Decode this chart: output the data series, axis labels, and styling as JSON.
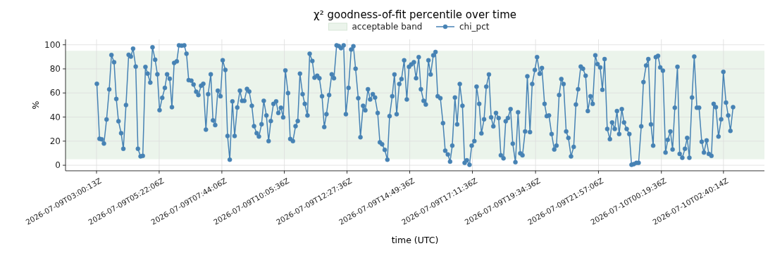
{
  "chart_data": {
    "type": "line",
    "title": "χ² goodness-of-fit percentile over time",
    "xlabel": "time (UTC)",
    "ylabel": "%",
    "xlim": [
      "2026-07-09T01:50",
      "2026-07-10T04:13"
    ],
    "ylim": [
      -4.6,
      104.5
    ],
    "xticks": [
      {
        "value": "2026-07-09T03:00:13",
        "label": "2026-07-09T03:00:13Z"
      },
      {
        "value": "2026-07-09T05:22:06",
        "label": "2026-07-09T05:22:06Z"
      },
      {
        "value": "2026-07-09T07:44:06",
        "label": "2026-07-09T07:44:06Z"
      },
      {
        "value": "2026-07-09T10:05:36",
        "label": "2026-07-09T10:05:36Z"
      },
      {
        "value": "2026-07-09T12:27:36",
        "label": "2026-07-09T12:27:36Z"
      },
      {
        "value": "2026-07-09T14:49:36",
        "label": "2026-07-09T14:49:36Z"
      },
      {
        "value": "2026-07-09T17:11:36",
        "label": "2026-07-09T17:11:36Z"
      },
      {
        "value": "2026-07-09T19:34:36",
        "label": "2026-07-09T19:34:36Z"
      },
      {
        "value": "2026-07-09T21:57:06",
        "label": "2026-07-09T21:57:06Z"
      },
      {
        "value": "2026-07-10T00:19:36",
        "label": "2026-07-10T00:19:36Z"
      },
      {
        "value": "2026-07-10T02:40:14",
        "label": "2026-07-10T02:40:14Z"
      }
    ],
    "yticks": [
      0,
      20,
      40,
      60,
      80,
      100
    ],
    "grid": true,
    "legend": "top",
    "marker": "circle",
    "line_style": "solid",
    "bands": [
      {
        "axis": "y",
        "from": 5,
        "to": 95,
        "label": "acceptable band",
        "color": "#ebf4eb"
      }
    ],
    "series": [
      {
        "name": "chi_pct",
        "color": "#4682b4",
        "x": [
          "2026-07-09T03:01",
          "2026-07-09T03:07",
          "2026-07-09T03:12",
          "2026-07-09T03:17",
          "2026-07-09T03:23",
          "2026-07-09T03:29",
          "2026-07-09T03:34",
          "2026-07-09T03:40",
          "2026-07-09T03:45",
          "2026-07-09T03:50",
          "2026-07-09T03:56",
          "2026-07-09T04:01",
          "2026-07-09T04:07",
          "2026-07-09T04:13",
          "2026-07-09T04:18",
          "2026-07-09T04:23",
          "2026-07-09T04:29",
          "2026-07-09T04:34",
          "2026-07-09T04:40",
          "2026-07-09T04:45",
          "2026-07-09T04:51",
          "2026-07-09T04:56",
          "2026-07-09T05:02",
          "2026-07-09T05:07",
          "2026-07-09T05:13",
          "2026-07-09T05:18",
          "2026-07-09T05:23",
          "2026-07-09T05:29",
          "2026-07-09T05:35",
          "2026-07-09T05:40",
          "2026-07-09T05:46",
          "2026-07-09T05:51",
          "2026-07-09T05:56",
          "2026-07-09T06:02",
          "2026-07-09T06:07",
          "2026-07-09T06:13",
          "2026-07-09T06:19",
          "2026-07-09T06:24",
          "2026-07-09T06:29",
          "2026-07-09T06:35",
          "2026-07-09T06:40",
          "2026-07-09T06:46",
          "2026-07-09T06:51",
          "2026-07-09T06:57",
          "2026-07-09T07:02",
          "2026-07-09T07:08",
          "2026-07-09T07:13",
          "2026-07-09T07:19",
          "2026-07-09T07:24",
          "2026-07-09T07:29",
          "2026-07-09T07:35",
          "2026-07-09T07:41",
          "2026-07-09T07:46",
          "2026-07-09T07:52",
          "2026-07-09T07:57",
          "2026-07-09T08:02",
          "2026-07-09T08:08",
          "2026-07-09T08:13",
          "2026-07-09T08:19",
          "2026-07-09T08:25",
          "2026-07-09T08:30",
          "2026-07-09T08:35",
          "2026-07-09T08:41",
          "2026-07-09T08:46",
          "2026-07-09T08:52",
          "2026-07-09T08:57",
          "2026-07-09T09:03",
          "2026-07-09T09:08",
          "2026-07-09T09:14",
          "2026-07-09T09:19",
          "2026-07-09T09:25",
          "2026-07-09T09:30",
          "2026-07-09T09:35",
          "2026-07-09T09:41",
          "2026-07-09T09:47",
          "2026-07-09T09:52",
          "2026-07-09T09:58",
          "2026-07-09T10:03",
          "2026-07-09T10:08",
          "2026-07-09T10:14",
          "2026-07-09T10:19",
          "2026-07-09T10:25",
          "2026-07-09T10:31",
          "2026-07-09T10:36",
          "2026-07-09T10:41",
          "2026-07-09T10:47",
          "2026-07-09T10:52",
          "2026-07-09T10:58",
          "2026-07-09T11:03",
          "2026-07-09T11:09",
          "2026-07-09T11:14",
          "2026-07-09T11:20",
          "2026-07-09T11:25",
          "2026-07-09T11:31",
          "2026-07-09T11:36",
          "2026-07-09T11:41",
          "2026-07-09T11:47",
          "2026-07-09T11:53",
          "2026-07-09T11:58",
          "2026-07-09T12:04",
          "2026-07-09T12:09",
          "2026-07-09T12:14",
          "2026-07-09T12:20",
          "2026-07-09T12:25",
          "2026-07-09T12:31",
          "2026-07-09T12:37",
          "2026-07-09T12:42",
          "2026-07-09T12:47",
          "2026-07-09T12:53",
          "2026-07-09T12:58",
          "2026-07-09T13:04",
          "2026-07-09T13:09",
          "2026-07-09T13:15",
          "2026-07-09T13:20",
          "2026-07-09T13:26",
          "2026-07-09T13:31",
          "2026-07-09T13:37",
          "2026-07-09T13:42",
          "2026-07-09T13:47",
          "2026-07-09T13:53",
          "2026-07-09T13:59",
          "2026-07-09T14:04",
          "2026-07-09T14:10",
          "2026-07-09T14:15",
          "2026-07-09T14:20",
          "2026-07-09T14:26",
          "2026-07-09T14:31",
          "2026-07-09T14:37",
          "2026-07-09T14:43",
          "2026-07-09T14:48",
          "2026-07-09T14:53",
          "2026-07-09T14:59",
          "2026-07-09T15:04",
          "2026-07-09T15:10",
          "2026-07-09T15:15",
          "2026-07-09T15:21",
          "2026-07-09T15:26",
          "2026-07-09T15:32",
          "2026-07-09T15:37",
          "2026-07-09T15:43",
          "2026-07-09T15:48",
          "2026-07-09T15:53",
          "2026-07-09T15:59",
          "2026-07-09T16:05",
          "2026-07-09T16:10",
          "2026-07-09T16:16",
          "2026-07-09T16:21",
          "2026-07-09T16:26",
          "2026-07-09T16:32",
          "2026-07-09T16:37",
          "2026-07-09T16:43",
          "2026-07-09T16:49",
          "2026-07-09T16:54",
          "2026-07-09T16:59",
          "2026-07-09T17:05",
          "2026-07-09T17:10",
          "2026-07-09T17:16",
          "2026-07-09T17:21",
          "2026-07-09T17:27",
          "2026-07-09T17:32",
          "2026-07-09T17:38",
          "2026-07-09T17:43",
          "2026-07-09T17:49",
          "2026-07-09T17:54",
          "2026-07-09T17:59",
          "2026-07-09T18:05",
          "2026-07-09T18:11",
          "2026-07-09T18:16",
          "2026-07-09T18:22",
          "2026-07-09T18:27",
          "2026-07-09T18:32",
          "2026-07-09T18:38",
          "2026-07-09T18:43",
          "2026-07-09T18:49",
          "2026-07-09T18:55",
          "2026-07-09T19:00",
          "2026-07-09T19:05",
          "2026-07-09T19:11",
          "2026-07-09T19:16",
          "2026-07-09T19:22",
          "2026-07-09T19:27",
          "2026-07-09T19:33",
          "2026-07-09T19:38",
          "2026-07-09T19:44",
          "2026-07-09T19:49",
          "2026-07-09T19:55",
          "2026-07-09T20:00",
          "2026-07-09T20:05",
          "2026-07-09T20:11",
          "2026-07-09T20:17",
          "2026-07-09T20:22",
          "2026-07-09T20:28",
          "2026-07-09T20:33",
          "2026-07-09T20:38",
          "2026-07-09T20:44",
          "2026-07-09T20:49",
          "2026-07-09T20:55",
          "2026-07-09T21:01",
          "2026-07-09T21:06",
          "2026-07-09T21:11",
          "2026-07-09T21:17",
          "2026-07-09T21:22",
          "2026-07-09T21:28",
          "2026-07-09T21:33",
          "2026-07-09T21:39",
          "2026-07-09T21:44",
          "2026-07-09T21:50",
          "2026-07-09T21:55",
          "2026-07-09T22:01",
          "2026-07-09T22:06",
          "2026-07-09T22:11",
          "2026-07-09T22:17",
          "2026-07-09T22:23",
          "2026-07-09T22:28",
          "2026-07-09T22:34",
          "2026-07-09T22:39",
          "2026-07-09T22:44",
          "2026-07-09T22:50",
          "2026-07-09T22:55",
          "2026-07-09T23:01",
          "2026-07-09T23:07",
          "2026-07-09T23:12",
          "2026-07-09T23:17",
          "2026-07-09T23:23",
          "2026-07-09T23:28",
          "2026-07-09T23:34",
          "2026-07-09T23:39",
          "2026-07-09T23:45",
          "2026-07-09T23:50",
          "2026-07-09T23:56",
          "2026-07-10T00:01",
          "2026-07-10T00:07",
          "2026-07-10T00:12",
          "2026-07-10T00:17",
          "2026-07-10T00:23",
          "2026-07-10T00:29",
          "2026-07-10T00:34",
          "2026-07-10T00:40",
          "2026-07-10T00:45",
          "2026-07-10T00:50",
          "2026-07-10T00:56",
          "2026-07-10T01:01",
          "2026-07-10T01:07",
          "2026-07-10T01:13",
          "2026-07-10T01:18",
          "2026-07-10T01:23",
          "2026-07-10T01:29",
          "2026-07-10T01:34",
          "2026-07-10T01:40",
          "2026-07-10T01:45",
          "2026-07-10T01:51",
          "2026-07-10T01:56",
          "2026-07-10T02:02",
          "2026-07-10T02:07",
          "2026-07-10T02:13",
          "2026-07-10T02:18",
          "2026-07-10T02:23",
          "2026-07-10T02:29",
          "2026-07-10T02:35",
          "2026-07-10T02:40",
          "2026-07-10T02:46",
          "2026-07-10T02:51",
          "2026-07-10T02:56",
          "2026-07-10T03:02"
        ],
        "values": [
          67.6,
          22,
          21.5,
          18,
          38,
          63,
          91.5,
          85.5,
          55,
          36.5,
          26.6,
          13.7,
          50,
          91.7,
          90.2,
          96.8,
          81.9,
          13.7,
          7.4,
          7.8,
          81.6,
          76,
          68.6,
          97.9,
          87.6,
          75.5,
          45.7,
          56,
          64.2,
          75.5,
          71.8,
          48.2,
          84.9,
          86.2,
          99.5,
          99.3,
          99.5,
          92.6,
          70.6,
          70.2,
          67,
          61,
          58.3,
          66,
          67.6,
          29.6,
          59,
          75.5,
          37.2,
          33.3,
          61.9,
          57.3,
          87.2,
          79.1,
          24.3,
          4.6,
          53,
          24.3,
          47.9,
          61.9,
          53.5,
          53.5,
          63.3,
          61.2,
          49.3,
          32.4,
          26.6,
          23.8,
          34,
          53.5,
          41.3,
          20,
          36.7,
          50.9,
          53,
          43.4,
          47.7,
          39.7,
          78.7,
          59.9,
          21.8,
          20,
          32.4,
          36.7,
          76,
          59,
          50.9,
          41.3,
          92.6,
          86.5,
          72.7,
          74.3,
          72.2,
          57.3,
          31.7,
          42.4,
          58.3,
          75.5,
          72.2,
          99.5,
          98.9,
          97.2,
          99.5,
          42.4,
          64.2,
          96.1,
          98.8,
          80.1,
          55.7,
          23.2,
          49.3,
          45.6,
          63.1,
          54.6,
          59,
          56.2,
          43.4,
          19,
          17.4,
          12.8,
          4.6,
          40.8,
          57.3,
          75.4,
          42.4,
          67.4,
          71.6,
          87.1,
          54.6,
          81.7,
          83.7,
          85.5,
          72.2,
          89.7,
          63.1,
          53.5,
          50.4,
          87.1,
          75.4,
          91.3,
          94,
          57.3,
          55.7,
          34.9,
          12.1,
          8.9,
          3,
          16.3,
          56.2,
          33.9,
          67.4,
          49.3,
          2,
          4.1,
          0.4,
          16.3,
          20,
          65.2,
          50.9,
          26.4,
          38.1,
          65.2,
          75.4,
          39.7,
          32.3,
          43.4,
          39.2,
          8.3,
          5.7,
          36.5,
          39.2,
          46.6,
          17.9,
          2.5,
          44,
          9.9,
          8.3,
          28,
          73.8,
          27.5,
          67.4,
          79.1,
          89.7,
          75.9,
          80.7,
          50.9,
          40.8,
          41.3,
          25.9,
          13.1,
          16.3,
          58.3,
          71.6,
          67.4,
          28,
          22.7,
          7.3,
          15.2,
          50.4,
          63.1,
          81.9,
          80.1,
          74.3,
          45,
          57.3,
          50.9,
          91.3,
          83.9,
          81.2,
          62.6,
          88.1,
          30.1,
          21.6,
          35.5,
          30.1,
          45,
          25.9,
          46.6,
          35.5,
          30.1,
          25.9,
          0.4,
          0.9,
          2,
          2,
          32.3,
          69,
          82.8,
          88.1,
          33.9,
          16.3,
          89.7,
          90.8,
          81.2,
          78.5,
          10.5,
          21.1,
          28,
          13.1,
          47.7,
          81.7,
          9.4,
          6.2,
          13.7,
          22.7,
          6.2,
          56.2,
          90.2,
          47.7,
          47.7,
          19.5,
          10.5,
          20.6,
          9.4,
          7.8,
          50.9,
          48.2,
          23.8,
          38.1,
          77.5,
          52,
          41.3,
          28.5,
          48.2
        ]
      }
    ]
  }
}
